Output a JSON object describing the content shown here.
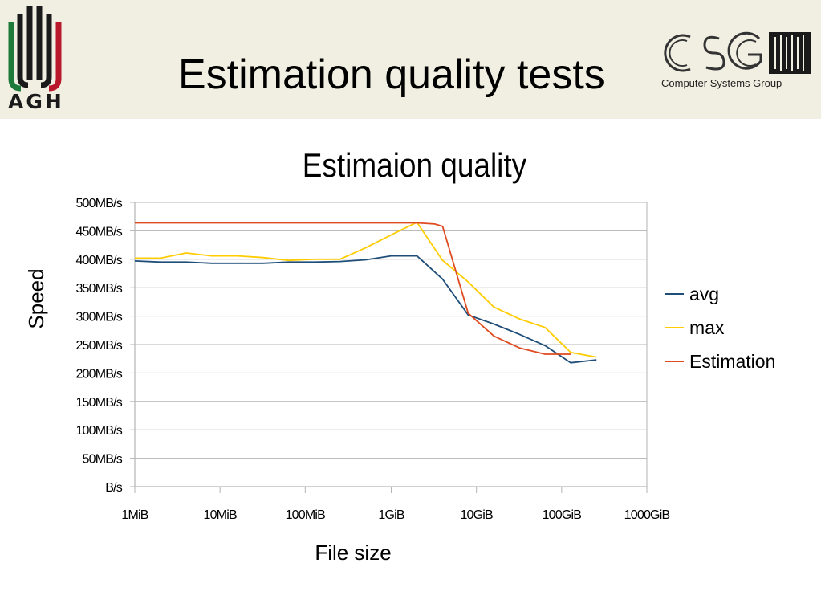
{
  "header": {
    "title": "Estimation quality tests",
    "left_logo_text": "AGH",
    "right_logo_text": "CSG",
    "right_logo_subtitle": "Computer Systems Group"
  },
  "chart_data": {
    "type": "line",
    "title": "Estimaion quality",
    "xlabel": "File size",
    "ylabel": "Speed",
    "x_scale": "log",
    "x_unit": "MiB",
    "x_ticks": [
      1,
      10,
      100,
      1024,
      10240,
      102400,
      1024000
    ],
    "x_tick_labels": [
      "1MiB",
      "10MiB",
      "100MiB",
      "1GiB",
      "10GiB",
      "100GiB",
      "1000GiB"
    ],
    "ylim": [
      0,
      500
    ],
    "y_ticks": [
      0,
      50,
      100,
      150,
      200,
      250,
      300,
      350,
      400,
      450,
      500
    ],
    "y_tick_labels": [
      "B/s",
      "50MB/s",
      "100MB/s",
      "150MB/s",
      "200MB/s",
      "250MB/s",
      "300MB/s",
      "350MB/s",
      "400MB/s",
      "450MB/s",
      "500MB/s"
    ],
    "grid": true,
    "legend_position": "right",
    "series": [
      {
        "name": "avg",
        "color": "#1f4e79",
        "points": [
          [
            1,
            397
          ],
          [
            2,
            395
          ],
          [
            4,
            395
          ],
          [
            8,
            393
          ],
          [
            16,
            393
          ],
          [
            32,
            393
          ],
          [
            64,
            395
          ],
          [
            128,
            395
          ],
          [
            256,
            396
          ],
          [
            512,
            399
          ],
          [
            1024,
            406
          ],
          [
            2048,
            406
          ],
          [
            4096,
            365
          ],
          [
            8192,
            302
          ],
          [
            16384,
            286
          ],
          [
            32768,
            268
          ],
          [
            65536,
            248
          ],
          [
            131072,
            218
          ],
          [
            262144,
            223
          ]
        ]
      },
      {
        "name": "max",
        "color": "#ffcc00",
        "points": [
          [
            1,
            402
          ],
          [
            2,
            402
          ],
          [
            4,
            411
          ],
          [
            8,
            406
          ],
          [
            16,
            406
          ],
          [
            32,
            403
          ],
          [
            64,
            398
          ],
          [
            128,
            400
          ],
          [
            256,
            400
          ],
          [
            512,
            420
          ],
          [
            1024,
            443
          ],
          [
            2048,
            465
          ],
          [
            4096,
            398
          ],
          [
            8192,
            360
          ],
          [
            16384,
            316
          ],
          [
            32768,
            295
          ],
          [
            65536,
            280
          ],
          [
            131072,
            236
          ],
          [
            262144,
            228
          ]
        ]
      },
      {
        "name": "Estimation",
        "color": "#e04a1f",
        "points": [
          [
            1,
            464
          ],
          [
            2,
            464
          ],
          [
            4,
            464
          ],
          [
            8,
            464
          ],
          [
            16,
            464
          ],
          [
            32,
            464
          ],
          [
            64,
            464
          ],
          [
            128,
            464
          ],
          [
            256,
            464
          ],
          [
            512,
            464
          ],
          [
            1024,
            464
          ],
          [
            2048,
            464
          ],
          [
            3300,
            462
          ],
          [
            4096,
            458
          ],
          [
            8192,
            305
          ],
          [
            16384,
            265
          ],
          [
            32768,
            244
          ],
          [
            65536,
            233
          ],
          [
            131072,
            233
          ]
        ]
      }
    ]
  }
}
